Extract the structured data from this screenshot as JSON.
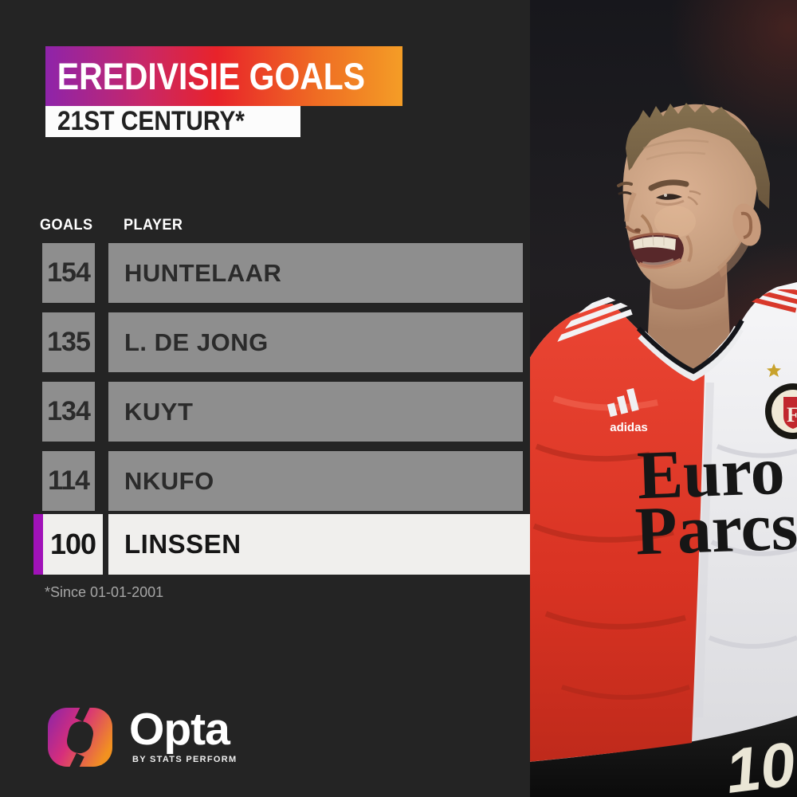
{
  "header": {
    "title": "EREDIVISIE GOALS",
    "subtitle": "21ST CENTURY*"
  },
  "table": {
    "columns": [
      "GOALS",
      "PLAYER"
    ],
    "rows": [
      {
        "goals": "154",
        "player": "HUNTELAAR",
        "highlight": false
      },
      {
        "goals": "135",
        "player": "L. DE JONG",
        "highlight": false
      },
      {
        "goals": "134",
        "player": "KUYT",
        "highlight": false
      },
      {
        "goals": "114",
        "player": "NKUFO",
        "highlight": false
      },
      {
        "goals": "100",
        "player": "LINSSEN",
        "highlight": true
      }
    ]
  },
  "footnote": "*Since 01-01-2001",
  "branding": {
    "name": "Opta",
    "tagline": "BY STATS PERFORM"
  },
  "photo": {
    "shirt_brand": "adidas",
    "sponsor_line1": "Euro",
    "sponsor_line2": "Parcs",
    "crest_letter": "F",
    "shorts_number": "10"
  },
  "colors": {
    "background": "#242424",
    "banner_gradient": [
      "#8e24aa",
      "#e8232a",
      "#f49d26"
    ],
    "row_gray": "#8e8e8e",
    "row_text": "#2b2b2b",
    "highlight_row_bg": "#f0efed",
    "highlight_accent": "#a012b8",
    "shirt_red": "#e04030"
  },
  "chart_data": {
    "type": "table",
    "title": "EREDIVISIE GOALS",
    "subtitle": "21ST CENTURY*",
    "columns": [
      "GOALS",
      "PLAYER"
    ],
    "rows": [
      [
        154,
        "HUNTELAAR"
      ],
      [
        135,
        "L. DE JONG"
      ],
      [
        134,
        "KUYT"
      ],
      [
        114,
        "NKUFO"
      ],
      [
        100,
        "LINSSEN"
      ]
    ],
    "highlighted_row": "LINSSEN",
    "footnote": "*Since 01-01-2001"
  }
}
